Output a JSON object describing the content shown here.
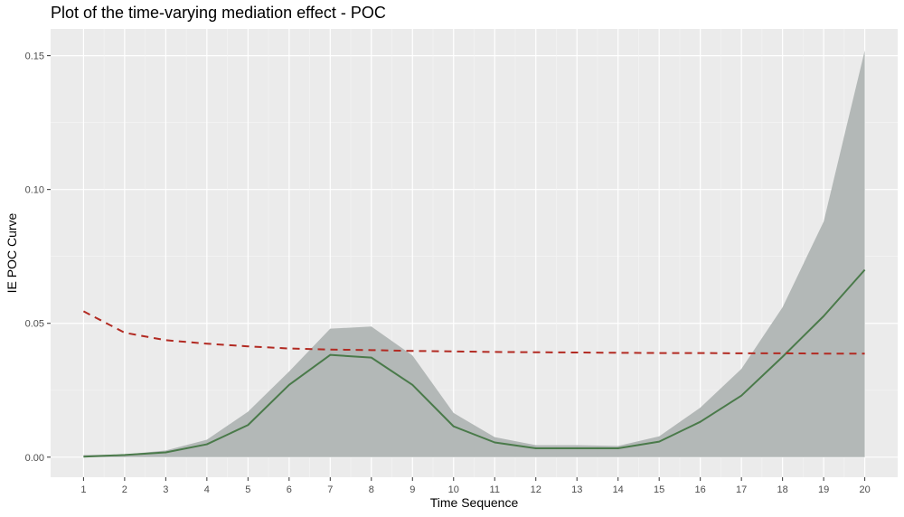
{
  "chart_data": {
    "type": "line",
    "title": "Plot of the time-varying mediation effect - POC",
    "xlabel": "Time Sequence",
    "ylabel": "IE POC Curve",
    "x": [
      1,
      2,
      3,
      4,
      5,
      6,
      7,
      8,
      9,
      10,
      11,
      12,
      13,
      14,
      15,
      16,
      17,
      18,
      19,
      20
    ],
    "x_tick_labels": [
      "1",
      "2",
      "3",
      "4",
      "5",
      "6",
      "7",
      "8",
      "9",
      "10",
      "11",
      "12",
      "13",
      "14",
      "15",
      "16",
      "17",
      "18",
      "19",
      "20"
    ],
    "xlim": [
      0.2,
      20.8
    ],
    "y_ticks": [
      0.0,
      0.05,
      0.1,
      0.15
    ],
    "y_tick_labels": [
      "0.00",
      "0.05",
      "0.10",
      "0.15"
    ],
    "ylim": [
      -0.0075,
      0.16
    ],
    "grid": true,
    "legend": "none",
    "series": [
      {
        "type": "area",
        "lower": [
          0.0,
          0.0,
          0.0,
          0.0,
          0.0,
          0.0,
          0.0,
          0.0,
          0.0,
          0.0,
          0.0,
          0.0,
          0.0,
          0.0,
          0.0,
          0.0,
          0.0,
          0.0,
          0.0,
          0.0
        ],
        "upper": [
          0.0008,
          0.001,
          0.0025,
          0.0065,
          0.017,
          0.032,
          0.048,
          0.0488,
          0.038,
          0.0165,
          0.0075,
          0.0045,
          0.0045,
          0.0042,
          0.0078,
          0.0185,
          0.033,
          0.056,
          0.088,
          0.152
        ],
        "color": "#b3b8b7"
      },
      {
        "type": "line",
        "style": "solid",
        "values": [
          0.0002,
          0.0008,
          0.0018,
          0.0048,
          0.012,
          0.027,
          0.0382,
          0.0372,
          0.027,
          0.0115,
          0.0055,
          0.0033,
          0.0033,
          0.0033,
          0.0058,
          0.0132,
          0.023,
          0.0375,
          0.0527,
          0.07
        ],
        "color": "#4a7a4a"
      },
      {
        "type": "line",
        "style": "dashed",
        "values": [
          0.0545,
          0.0465,
          0.0437,
          0.0424,
          0.0414,
          0.0406,
          0.0402,
          0.04,
          0.0397,
          0.0395,
          0.0393,
          0.0392,
          0.0391,
          0.039,
          0.0389,
          0.0389,
          0.0388,
          0.0388,
          0.0387,
          0.0387
        ],
        "color": "#b22a22"
      }
    ]
  }
}
